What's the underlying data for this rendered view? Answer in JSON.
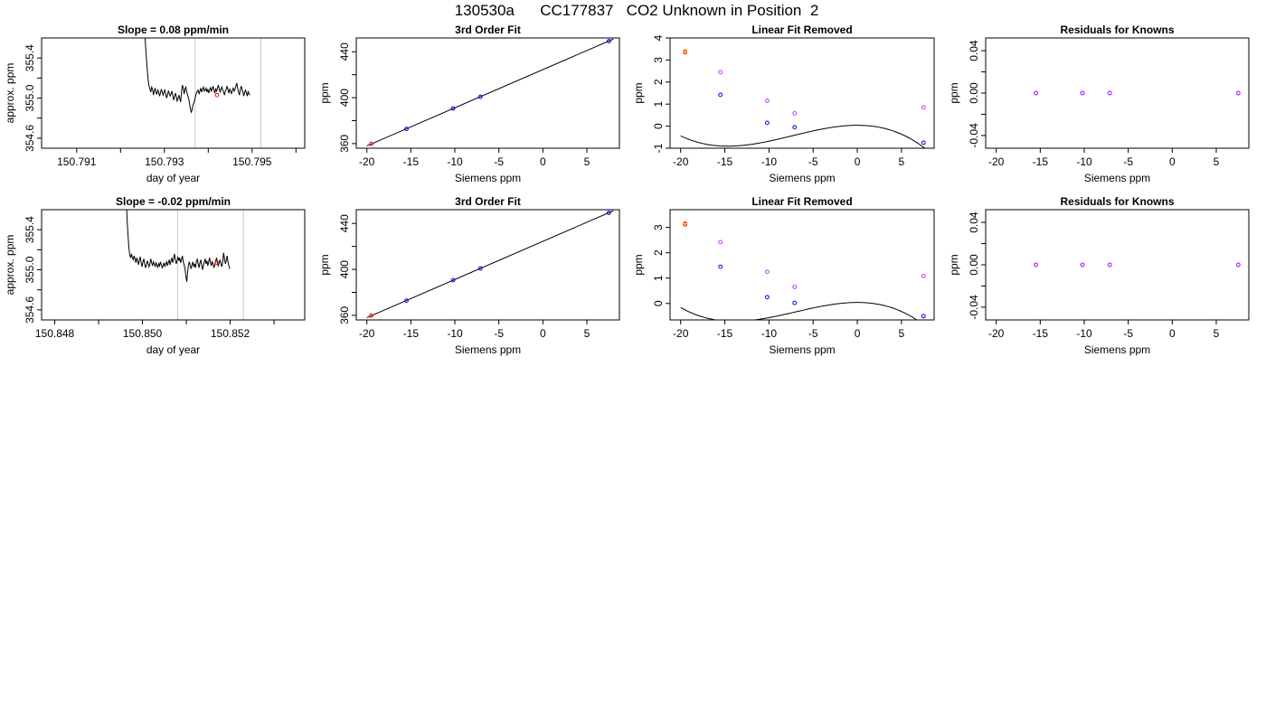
{
  "figure": {
    "title": "130530a      CC177837   CO2 Unknown in Position  2"
  },
  "chart_data": [
    {
      "id": "r1-timeseries",
      "type": "line",
      "title": "Slope =  0.08  ppm/min",
      "xlabel": "day of year",
      "ylabel": "approx. ppm",
      "xlim": [
        150.7902,
        150.7962
      ],
      "ylim": [
        354.5,
        355.6
      ],
      "xticks": [
        150.791,
        150.792,
        150.793,
        150.794,
        150.795,
        150.796
      ],
      "xtick_labels": [
        "150.791",
        "",
        "150.793",
        "",
        "150.795",
        ""
      ],
      "yticks": [
        354.6,
        354.8,
        355.0,
        355.2,
        355.4
      ],
      "ytick_labels": [
        "354.6",
        "",
        "355.0",
        "",
        "355.4"
      ],
      "vlines": [
        150.7937,
        150.7952
      ],
      "vline_color": "#c8c8c8",
      "series": [
        {
          "x_start": 150.79253,
          "x_step": 2e-05,
          "values": [
            355.92,
            355.7,
            355.52,
            355.4,
            355.28,
            355.18,
            355.12,
            355.09,
            355.06,
            355.11,
            355.09,
            355.03,
            355.07,
            355.1,
            355.05,
            355.04,
            355.08,
            355.06,
            355.02,
            355.05,
            355.09,
            355.06,
            355.03,
            355.06,
            355.08,
            355.04,
            355.0,
            355.03,
            355.07,
            355.05,
            355.02,
            355.04,
            355.07,
            355.03,
            354.98,
            355.01,
            355.05,
            355.02,
            354.97,
            354.99,
            355.03,
            355.0,
            354.96,
            355.06,
            355.13,
            355.1,
            355.04,
            355.09,
            355.11,
            355.06,
            355.03,
            355.0,
            354.96,
            354.9,
            354.86,
            354.88,
            354.93,
            354.95,
            354.98,
            355.02,
            355.05,
            355.07,
            355.08,
            355.04,
            355.07,
            355.1,
            355.06,
            355.09,
            355.11,
            355.07,
            355.08,
            355.1,
            355.06,
            355.09,
            355.05,
            355.08,
            355.11,
            355.07,
            355.09,
            355.12,
            355.08,
            355.05,
            355.09,
            355.07,
            355.1,
            355.13,
            355.09,
            355.06,
            355.09,
            355.11,
            355.08,
            355.06,
            355.03,
            355.07,
            355.09,
            355.12,
            355.08,
            355.05,
            355.09,
            355.07,
            355.04,
            355.08,
            355.1,
            355.07,
            355.09,
            355.12,
            355.15,
            355.1,
            355.06,
            355.03,
            355.08,
            355.12,
            355.09,
            355.06,
            355.02,
            355.06,
            355.08,
            355.05,
            355.02,
            355.07,
            355.04,
            355.03
          ],
          "color": "#000000"
        }
      ],
      "marker": {
        "x": 150.7942,
        "y": 355.03,
        "color": "#ff0000",
        "shape": "open-circle"
      }
    },
    {
      "id": "r1-fit",
      "type": "scatter",
      "title": "3rd Order Fit",
      "xlabel": "Siemens ppm",
      "ylabel": "ppm",
      "xlim": [
        -21.2,
        8.7
      ],
      "ylim": [
        356,
        452
      ],
      "xticks": [
        -20,
        -15,
        -10,
        -5,
        0,
        5
      ],
      "xtick_labels": [
        "-20",
        "-15",
        "-10",
        "-5",
        "0",
        "5"
      ],
      "yticks": [
        360,
        380,
        400,
        420,
        440
      ],
      "ytick_labels": [
        "360",
        "",
        "400",
        "",
        "440"
      ],
      "line": {
        "x": [
          -20,
          8
        ],
        "y": [
          358.0,
          451.0
        ],
        "color": "#000000"
      },
      "points": [
        {
          "x": -19.5,
          "y": 359.8,
          "color": "#ff0000"
        },
        {
          "x": -15.5,
          "y": 372.8,
          "color": "#0000ff"
        },
        {
          "x": -10.2,
          "y": 390.6,
          "color": "#0000ff"
        },
        {
          "x": -7.1,
          "y": 400.8,
          "color": "#0000ff"
        },
        {
          "x": 7.5,
          "y": 449.2,
          "color": "#0000ff"
        }
      ]
    },
    {
      "id": "r1-linear-removed",
      "type": "scatter",
      "title": "Linear Fit Removed",
      "xlabel": "Siemens ppm",
      "ylabel": "ppm",
      "xlim": [
        -21.2,
        8.7
      ],
      "ylim": [
        -1,
        4
      ],
      "xticks": [
        -20,
        -15,
        -10,
        -5,
        0,
        5
      ],
      "xtick_labels": [
        "-20",
        "-15",
        "-10",
        "-5",
        "0",
        "5"
      ],
      "yticks": [
        -1,
        0,
        1,
        2,
        3,
        4
      ],
      "ytick_labels": [
        "-1",
        "0",
        "1",
        "2",
        "3",
        "4"
      ],
      "curve": {
        "poly": [
          0.04,
          0.0,
          -0.0132,
          -0.0006
        ],
        "xrange": [
          -20,
          8
        ],
        "color": "#000000"
      },
      "points": [
        {
          "x": -19.5,
          "y": 3.35,
          "color": "#ff0000"
        },
        {
          "x": -19.5,
          "y": 3.4,
          "color": "#ff8c00"
        },
        {
          "x": -15.5,
          "y": 2.45,
          "color": "#cc33ff"
        },
        {
          "x": -15.5,
          "y": 1.42,
          "color": "#0000ff"
        },
        {
          "x": -10.2,
          "y": 1.15,
          "color": "#cc33ff"
        },
        {
          "x": -10.2,
          "y": 0.15,
          "color": "#0000ff"
        },
        {
          "x": -7.1,
          "y": 0.58,
          "color": "#cc33ff"
        },
        {
          "x": -7.1,
          "y": -0.05,
          "color": "#0000ff"
        },
        {
          "x": 7.5,
          "y": 0.85,
          "color": "#cc33ff"
        },
        {
          "x": 7.5,
          "y": -0.75,
          "color": "#0000ff"
        }
      ]
    },
    {
      "id": "r1-residuals",
      "type": "scatter",
      "title": "Residuals for Knowns",
      "xlabel": "Siemens ppm",
      "ylabel": "ppm",
      "xlim": [
        -21.2,
        8.7
      ],
      "ylim": [
        -0.052,
        0.052
      ],
      "xticks": [
        -20,
        -15,
        -10,
        -5,
        0,
        5
      ],
      "xtick_labels": [
        "-20",
        "-15",
        "-10",
        "-5",
        "0",
        "5"
      ],
      "yticks": [
        -0.04,
        -0.02,
        0.0,
        0.02,
        0.04
      ],
      "ytick_labels": [
        "-0.04",
        "",
        "0.00",
        "",
        "0.04"
      ],
      "points": [
        {
          "x": -15.5,
          "y": 0,
          "color": "#0000ff"
        },
        {
          "x": -10.2,
          "y": 0,
          "color": "#0000ff"
        },
        {
          "x": -7.1,
          "y": 0,
          "color": "#0000ff"
        },
        {
          "x": 7.5,
          "y": 0,
          "color": "#0000ff"
        },
        {
          "x": -15.5,
          "y": 0,
          "color": "#cc33ff"
        },
        {
          "x": -10.2,
          "y": 0,
          "color": "#cc33ff"
        },
        {
          "x": -7.1,
          "y": 0,
          "color": "#cc33ff"
        },
        {
          "x": 7.5,
          "y": 0,
          "color": "#cc33ff"
        }
      ]
    },
    {
      "id": "r2-timeseries",
      "type": "line",
      "title": "Slope =  -0.02  ppm/min",
      "xlabel": "day of year",
      "ylabel": "approx. ppm",
      "xlim": [
        150.8477,
        150.8537
      ],
      "ylim": [
        354.5,
        355.6
      ],
      "xticks": [
        150.848,
        150.849,
        150.85,
        150.851,
        150.852,
        150.853
      ],
      "xtick_labels": [
        "150.848",
        "",
        "150.850",
        "",
        "150.852",
        ""
      ],
      "yticks": [
        354.6,
        354.8,
        355.0,
        355.2,
        355.4
      ],
      "ytick_labels": [
        "354.6",
        "",
        "355.0",
        "",
        "355.4"
      ],
      "vlines": [
        150.8508,
        150.8523
      ],
      "vline_color": "#c8c8c8",
      "series": [
        {
          "x_start": 150.84963,
          "x_step": 2e-05,
          "values": [
            355.72,
            355.5,
            355.35,
            355.22,
            355.15,
            355.12,
            355.16,
            355.12,
            355.1,
            355.14,
            355.11,
            355.07,
            355.12,
            355.09,
            355.05,
            355.1,
            355.13,
            355.07,
            355.03,
            355.08,
            355.11,
            355.06,
            355.02,
            355.05,
            355.09,
            355.06,
            355.03,
            355.06,
            355.11,
            355.07,
            355.04,
            355.08,
            355.06,
            355.03,
            355.07,
            355.05,
            355.02,
            355.06,
            355.04,
            355.08,
            355.05,
            355.02,
            355.04,
            355.07,
            355.03,
            355.06,
            355.08,
            355.04,
            355.07,
            355.1,
            355.05,
            355.09,
            355.12,
            355.07,
            355.11,
            355.16,
            355.1,
            355.06,
            355.09,
            355.13,
            355.09,
            355.12,
            355.07,
            355.1,
            355.14,
            355.08,
            355.05,
            355.01,
            354.94,
            354.88,
            354.98,
            355.05,
            355.08,
            355.04,
            355.01,
            355.05,
            355.08,
            355.03,
            355.06,
            355.02,
            355.08,
            355.11,
            355.06,
            355.02,
            355.07,
            355.1,
            355.05,
            355.0,
            355.04,
            355.08,
            355.11,
            355.06,
            355.09,
            355.04,
            355.08,
            355.12,
            355.07,
            355.04,
            355.08,
            355.06,
            355.02,
            355.05,
            355.09,
            355.12,
            355.07,
            355.04,
            355.07,
            355.1,
            355.06,
            355.03,
            355.08,
            355.17,
            355.11,
            355.06,
            355.09,
            355.14,
            355.08,
            355.04,
            355.01
          ],
          "color": "#000000"
        }
      ],
      "marker": {
        "x": 150.8517,
        "y": 355.07,
        "color": "#ff0000",
        "shape": "open-circle"
      }
    },
    {
      "id": "r2-fit",
      "type": "scatter",
      "title": "3rd Order Fit",
      "xlabel": "Siemens ppm",
      "ylabel": "ppm",
      "xlim": [
        -21.2,
        8.7
      ],
      "ylim": [
        356,
        452
      ],
      "xticks": [
        -20,
        -15,
        -10,
        -5,
        0,
        5
      ],
      "xtick_labels": [
        "-20",
        "-15",
        "-10",
        "-5",
        "0",
        "5"
      ],
      "yticks": [
        360,
        380,
        400,
        420,
        440
      ],
      "ytick_labels": [
        "360",
        "",
        "400",
        "",
        "440"
      ],
      "line": {
        "x": [
          -20,
          8
        ],
        "y": [
          358.0,
          451.0
        ],
        "color": "#000000"
      },
      "points": [
        {
          "x": -19.5,
          "y": 359.8,
          "color": "#ff0000"
        },
        {
          "x": -15.5,
          "y": 372.8,
          "color": "#0000ff"
        },
        {
          "x": -10.2,
          "y": 390.6,
          "color": "#0000ff"
        },
        {
          "x": -7.1,
          "y": 400.8,
          "color": "#0000ff"
        },
        {
          "x": 7.5,
          "y": 449.2,
          "color": "#0000ff"
        }
      ]
    },
    {
      "id": "r2-linear-removed",
      "type": "scatter",
      "title": "Linear Fit Removed",
      "xlabel": "Siemens ppm",
      "ylabel": "ppm",
      "xlim": [
        -21.2,
        8.7
      ],
      "ylim": [
        -0.65,
        3.7
      ],
      "xticks": [
        -20,
        -15,
        -10,
        -5,
        0,
        5
      ],
      "xtick_labels": [
        "-20",
        "-15",
        "-10",
        "-5",
        "0",
        "5"
      ],
      "yticks": [
        0,
        1,
        2,
        3
      ],
      "ytick_labels": [
        "0",
        "1",
        "2",
        "3"
      ],
      "curve": {
        "poly": [
          0.04,
          0.0,
          -0.0115,
          -0.00055
        ],
        "xrange": [
          -20,
          8
        ],
        "color": "#000000"
      },
      "points": [
        {
          "x": -19.5,
          "y": 3.12,
          "color": "#ff0000"
        },
        {
          "x": -19.5,
          "y": 3.17,
          "color": "#ff8c00"
        },
        {
          "x": -15.5,
          "y": 2.42,
          "color": "#cc33ff"
        },
        {
          "x": -15.5,
          "y": 1.45,
          "color": "#0000ff"
        },
        {
          "x": -10.2,
          "y": 1.25,
          "color": "#cc33ff"
        },
        {
          "x": -10.2,
          "y": 0.25,
          "color": "#0000ff"
        },
        {
          "x": -7.1,
          "y": 0.65,
          "color": "#cc33ff"
        },
        {
          "x": -7.1,
          "y": 0.02,
          "color": "#0000ff"
        },
        {
          "x": 7.5,
          "y": 1.08,
          "color": "#cc33ff"
        },
        {
          "x": 7.5,
          "y": -0.5,
          "color": "#0000ff"
        }
      ]
    },
    {
      "id": "r2-residuals",
      "type": "scatter",
      "title": "Residuals for Knowns",
      "xlabel": "Siemens ppm",
      "ylabel": "ppm",
      "xlim": [
        -21.2,
        8.7
      ],
      "ylim": [
        -0.052,
        0.052
      ],
      "xticks": [
        -20,
        -15,
        -10,
        -5,
        0,
        5
      ],
      "xtick_labels": [
        "-20",
        "-15",
        "-10",
        "-5",
        "0",
        "5"
      ],
      "yticks": [
        -0.04,
        -0.02,
        0.0,
        0.02,
        0.04
      ],
      "ytick_labels": [
        "-0.04",
        "",
        "0.00",
        "",
        "0.04"
      ],
      "points": [
        {
          "x": -15.5,
          "y": 0,
          "color": "#0000ff"
        },
        {
          "x": -10.2,
          "y": 0,
          "color": "#0000ff"
        },
        {
          "x": -7.1,
          "y": 0,
          "color": "#0000ff"
        },
        {
          "x": 7.5,
          "y": 0,
          "color": "#0000ff"
        },
        {
          "x": -15.5,
          "y": 0,
          "color": "#cc33ff"
        },
        {
          "x": -10.2,
          "y": 0,
          "color": "#cc33ff"
        },
        {
          "x": -7.1,
          "y": 0,
          "color": "#cc33ff"
        },
        {
          "x": 7.5,
          "y": 0,
          "color": "#cc33ff"
        }
      ]
    }
  ]
}
